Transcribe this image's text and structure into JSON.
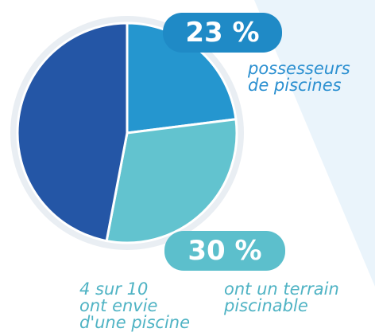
{
  "chart_data": {
    "type": "pie",
    "categories": [
      "possesseurs\nde piscines",
      "ont un terrain\npiscinable",
      null
    ],
    "values": [
      23,
      30,
      47
    ],
    "value_labels": [
      "23 %",
      "30 %",
      null
    ],
    "colors": [
      "#2596cf",
      "#62c3cf",
      "#2456a6"
    ],
    "annotation": "4 sur 10\nont envie\nd'une piscine"
  }
}
